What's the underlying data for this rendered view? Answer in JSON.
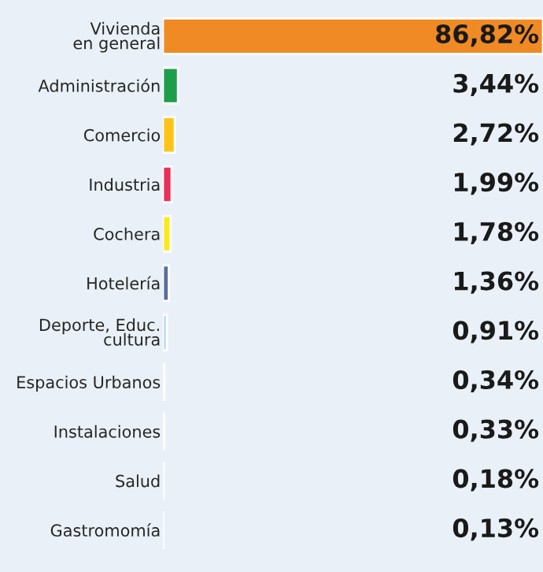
{
  "chart_data": {
    "type": "bar",
    "orientation": "horizontal",
    "categories": [
      "Vivienda\nen general",
      "Administración",
      "Comercio",
      "Industria",
      "Cochera",
      "Hotelería",
      "Deporte, Educ.\ncultura",
      "Espacios Urbanos",
      "Instalaciones",
      "Salud",
      "Gastromomía"
    ],
    "values": [
      86.82,
      3.44,
      2.72,
      1.99,
      1.78,
      1.36,
      0.91,
      0.34,
      0.33,
      0.18,
      0.13
    ],
    "colors": [
      "#f08a24",
      "#1e9e4a",
      "#fcc419",
      "#e8305a",
      "#fbe91c",
      "#5a6e9e",
      "#b5d8f2",
      "#8a8282",
      "#c8358a",
      "#c4e4cc",
      "#9a8a88"
    ],
    "value_labels": [
      "86,82%",
      "3,44%",
      "2,72%",
      "1,99%",
      "1,78%",
      "1,36%",
      "0,91%",
      "0,34%",
      "0,33%",
      "0,18%",
      "0,13%"
    ],
    "grid": false,
    "legend": false
  }
}
